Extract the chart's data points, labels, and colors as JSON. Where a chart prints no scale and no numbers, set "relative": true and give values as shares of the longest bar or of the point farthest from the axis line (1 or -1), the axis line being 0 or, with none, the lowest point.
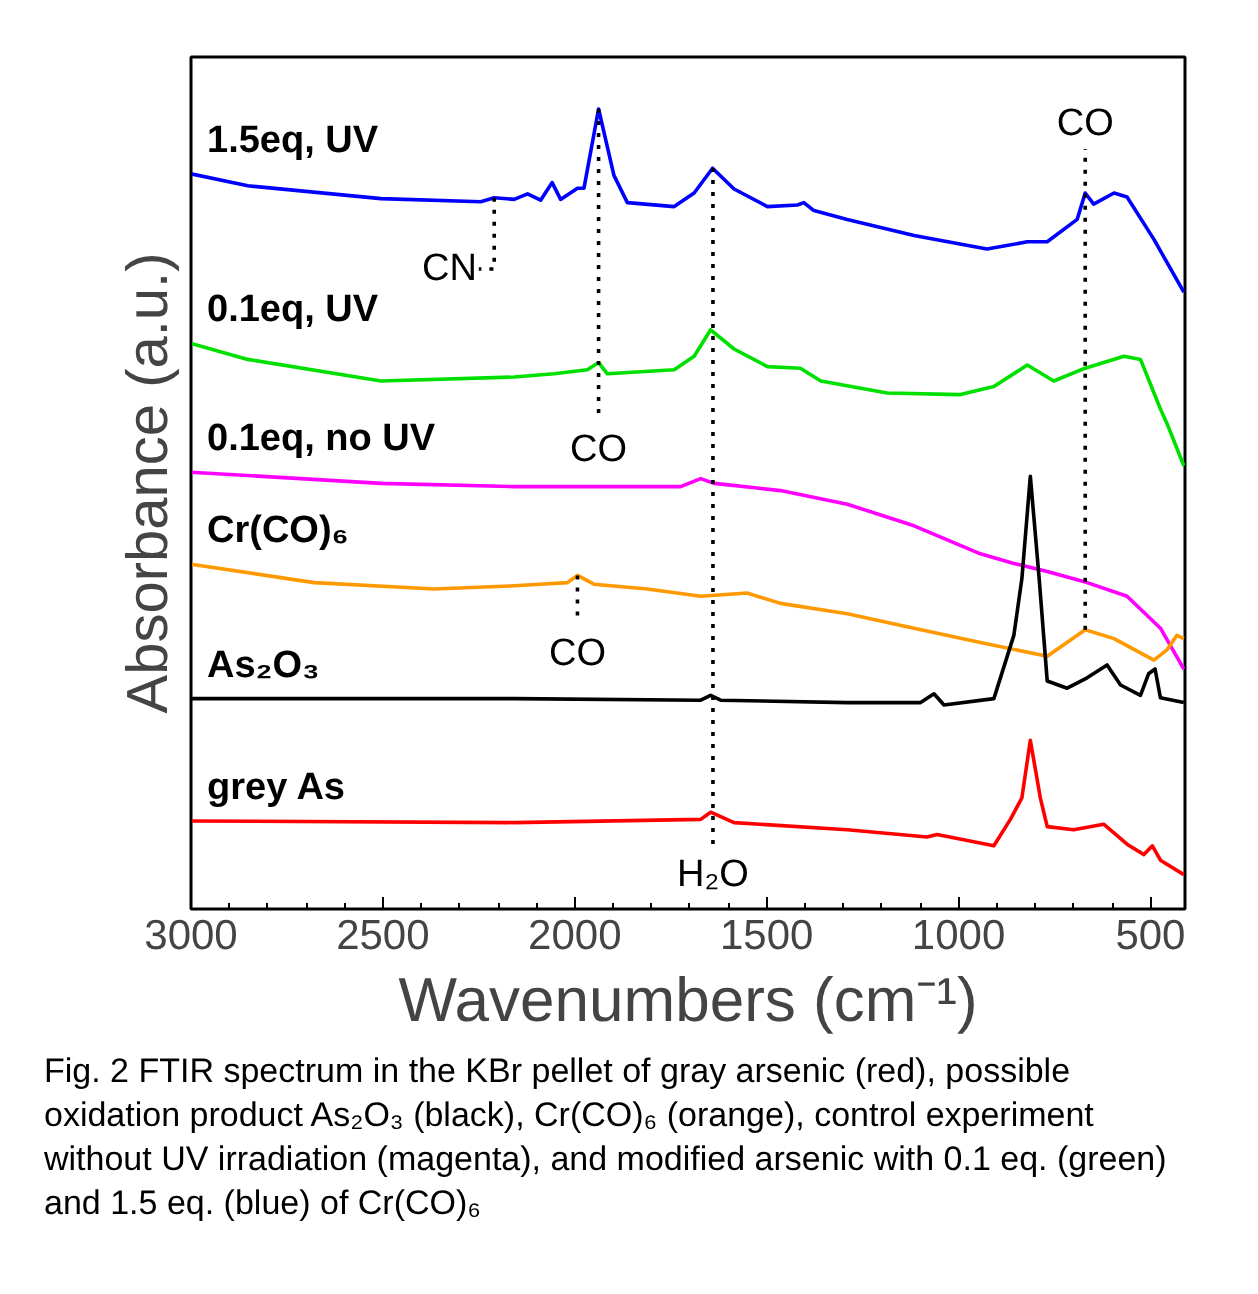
{
  "chart_data": {
    "type": "line",
    "relative": true,
    "xlabel": "Wavenumbers (cm⁻¹)",
    "ylabel": "Absorbance (a.u.)",
    "xlim": [
      3000,
      410
    ],
    "xticks": [
      3000,
      2500,
      2000,
      1500,
      1000,
      500
    ],
    "grid": false,
    "ref_lines": [
      {
        "axis": "x",
        "value": 1640,
        "label": "H₂O",
        "line_style": "dotted",
        "color": "#000000"
      }
    ],
    "legend": false,
    "line_style": "solid",
    "marker": "none",
    "series": [
      {
        "name": "1.5eq, UV",
        "color": "#0000ff",
        "x": [
          3000,
          2852,
          2505,
          2245,
          2210,
          2158,
          2123,
          2089,
          2059,
          2037,
          1993,
          1976,
          1938,
          1898,
          1863,
          1741,
          1689,
          1641,
          1585,
          1498,
          1420,
          1403,
          1377,
          1290,
          1116,
          926,
          821,
          769,
          691,
          670,
          648,
          595,
          561,
          491,
          413
        ],
        "values": [
          0.919,
          0.904,
          0.888,
          0.884,
          0.889,
          0.887,
          0.894,
          0.886,
          0.908,
          0.887,
          0.901,
          0.901,
          1.0,
          0.917,
          0.883,
          0.878,
          0.895,
          0.926,
          0.9,
          0.878,
          0.88,
          0.883,
          0.873,
          0.862,
          0.842,
          0.825,
          0.834,
          0.834,
          0.862,
          0.895,
          0.881,
          0.895,
          0.89,
          0.837,
          0.771
        ]
      },
      {
        "name": "0.1eq, UV",
        "color": "#00e000",
        "x": [
          3000,
          2852,
          2505,
          2158,
          2054,
          1967,
          1938,
          1915,
          1741,
          1689,
          1646,
          1585,
          1498,
          1412,
          1359,
          1186,
          995,
          908,
          821,
          752,
          670,
          569,
          526,
          474,
          457,
          413
        ],
        "values": [
          0.707,
          0.687,
          0.66,
          0.665,
          0.669,
          0.674,
          0.683,
          0.669,
          0.674,
          0.691,
          0.724,
          0.7,
          0.678,
          0.676,
          0.66,
          0.645,
          0.643,
          0.653,
          0.68,
          0.66,
          0.676,
          0.691,
          0.687,
          0.625,
          0.607,
          0.554
        ]
      },
      {
        "name": "0.1eq, no UV",
        "color": "#ff00ff",
        "x": [
          3000,
          2505,
          2158,
          1724,
          1672,
          1637,
          1464,
          1290,
          1116,
          943,
          856,
          769,
          665,
          561,
          474,
          413
        ],
        "values": [
          0.546,
          0.532,
          0.528,
          0.528,
          0.538,
          0.532,
          0.523,
          0.506,
          0.479,
          0.444,
          0.432,
          0.422,
          0.408,
          0.391,
          0.351,
          0.3
        ]
      },
      {
        "name": "Cr(CO)₆",
        "color": "#ff9900",
        "x": [
          3000,
          2679,
          2366,
          2158,
          2019,
          1993,
          1950,
          1811,
          1672,
          1551,
          1464,
          1290,
          1116,
          943,
          769,
          670,
          595,
          491,
          457,
          431,
          413
        ],
        "values": [
          0.431,
          0.408,
          0.4,
          0.404,
          0.408,
          0.417,
          0.406,
          0.4,
          0.391,
          0.395,
          0.382,
          0.369,
          0.351,
          0.333,
          0.316,
          0.349,
          0.338,
          0.311,
          0.324,
          0.342,
          0.338
        ]
      },
      {
        "name": "As₂O₃",
        "color": "#000000",
        "x": [
          3000,
          2158,
          1672,
          1646,
          1620,
          1290,
          1099,
          1064,
          1038,
          908,
          856,
          835,
          813,
          790,
          769,
          717,
          665,
          613,
          578,
          526,
          505,
          488,
          474,
          413
        ],
        "values": [
          0.263,
          0.263,
          0.261,
          0.267,
          0.261,
          0.258,
          0.258,
          0.269,
          0.255,
          0.263,
          0.342,
          0.413,
          0.541,
          0.413,
          0.285,
          0.276,
          0.289,
          0.305,
          0.28,
          0.267,
          0.294,
          0.3,
          0.264,
          0.258
        ]
      },
      {
        "name": "grey As",
        "color": "#ff0000",
        "x": [
          3000,
          2158,
          1672,
          1646,
          1585,
          1290,
          1082,
          1056,
          908,
          865,
          835,
          813,
          787,
          769,
          700,
          622,
          561,
          517,
          495,
          474,
          413
        ],
        "values": [
          0.11,
          0.108,
          0.112,
          0.121,
          0.108,
          0.099,
          0.09,
          0.093,
          0.079,
          0.112,
          0.139,
          0.211,
          0.139,
          0.103,
          0.099,
          0.106,
          0.081,
          0.068,
          0.079,
          0.061,
          0.043
        ]
      }
    ],
    "annotations": [
      {
        "text": "CO",
        "x": 670,
        "y": 0.349
      },
      {
        "text": "CO",
        "x": 1938,
        "y": 1.0
      },
      {
        "text": "CO",
        "x": 1993,
        "y": 0.417
      },
      {
        "text": "CN",
        "x": 2210,
        "y": 0.889
      },
      "Fig. 2 FTIR spectrum in the KBr pellet of gray arsenic (red), possible oxidation product As₂O₃ (black), Cr(CO)₆ (orange), control experiment without UV irradiation (magenta), and modified arsenic with 0.1 eq. (green) and 1.5 eq. (blue) of Cr(CO)₆"
    ]
  }
}
